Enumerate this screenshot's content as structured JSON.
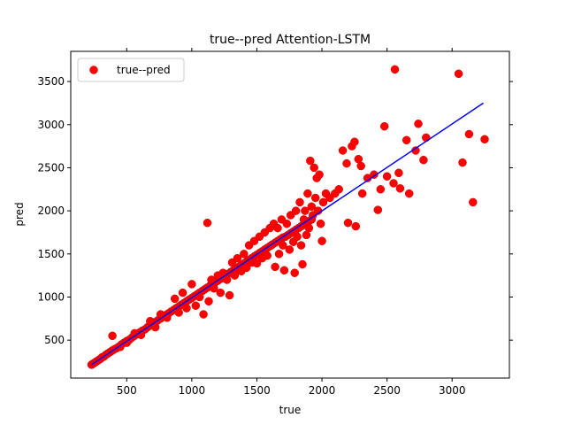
{
  "chart_data": {
    "type": "scatter",
    "title": "true--pred Attention-LSTM",
    "xlabel": "true",
    "ylabel": "pred",
    "xlim": [
      70,
      3440
    ],
    "ylim": [
      60,
      3850
    ],
    "xticks": [
      500,
      1000,
      1500,
      2000,
      2500,
      3000
    ],
    "yticks": [
      500,
      1000,
      1500,
      2000,
      2500,
      3000,
      3500
    ],
    "grid": false,
    "legend": {
      "position": "top-left",
      "entries": [
        "true--pred"
      ]
    },
    "colors": {
      "points": "#ff0000",
      "points_edge": "#cc0000",
      "fit_line": "#0000ff"
    },
    "series": [
      {
        "name": "true--pred",
        "points": [
          [
            230,
            215
          ],
          [
            240,
            225
          ],
          [
            250,
            235
          ],
          [
            260,
            245
          ],
          [
            270,
            255
          ],
          [
            285,
            270
          ],
          [
            300,
            285
          ],
          [
            310,
            300
          ],
          [
            325,
            310
          ],
          [
            340,
            330
          ],
          [
            355,
            345
          ],
          [
            370,
            360
          ],
          [
            385,
            375
          ],
          [
            400,
            390
          ],
          [
            420,
            405
          ],
          [
            440,
            425
          ],
          [
            460,
            450
          ],
          [
            480,
            470
          ],
          [
            500,
            490
          ],
          [
            520,
            505
          ],
          [
            540,
            530
          ],
          [
            560,
            550
          ],
          [
            580,
            570
          ],
          [
            600,
            590
          ],
          [
            620,
            610
          ],
          [
            640,
            625
          ],
          [
            660,
            650
          ],
          [
            680,
            670
          ],
          [
            700,
            690
          ],
          [
            720,
            710
          ],
          [
            740,
            730
          ],
          [
            760,
            750
          ],
          [
            780,
            770
          ],
          [
            800,
            790
          ],
          [
            820,
            810
          ],
          [
            840,
            830
          ],
          [
            860,
            850
          ],
          [
            880,
            870
          ],
          [
            900,
            890
          ],
          [
            920,
            910
          ],
          [
            940,
            930
          ],
          [
            960,
            950
          ],
          [
            980,
            970
          ],
          [
            1000,
            990
          ],
          [
            1020,
            1010
          ],
          [
            1040,
            1030
          ],
          [
            1060,
            1050
          ],
          [
            1080,
            1070
          ],
          [
            1100,
            1090
          ],
          [
            1120,
            1110
          ],
          [
            1140,
            1130
          ],
          [
            1160,
            1150
          ],
          [
            1180,
            1170
          ],
          [
            1200,
            1190
          ],
          [
            1220,
            1210
          ],
          [
            1240,
            1230
          ],
          [
            1260,
            1250
          ],
          [
            1280,
            1270
          ],
          [
            1300,
            1290
          ],
          [
            1320,
            1310
          ],
          [
            1340,
            1330
          ],
          [
            1360,
            1350
          ],
          [
            1380,
            1370
          ],
          [
            1400,
            1390
          ],
          [
            1420,
            1410
          ],
          [
            1440,
            1430
          ],
          [
            1460,
            1450
          ],
          [
            1480,
            1470
          ],
          [
            1500,
            1490
          ],
          [
            1520,
            1510
          ],
          [
            1540,
            1530
          ],
          [
            1560,
            1550
          ],
          [
            1580,
            1570
          ],
          [
            1600,
            1590
          ],
          [
            1620,
            1610
          ],
          [
            1640,
            1630
          ],
          [
            1660,
            1650
          ],
          [
            1680,
            1670
          ],
          [
            1700,
            1690
          ],
          [
            1720,
            1700
          ],
          [
            1740,
            1720
          ],
          [
            1760,
            1740
          ],
          [
            1780,
            1760
          ],
          [
            1800,
            1780
          ],
          [
            1820,
            1800
          ],
          [
            1840,
            1820
          ],
          [
            1860,
            1840
          ],
          [
            1880,
            1860
          ],
          [
            1900,
            1880
          ],
          [
            1920,
            1900
          ],
          [
            390,
            550
          ],
          [
            450,
            420
          ],
          [
            500,
            470
          ],
          [
            560,
            580
          ],
          [
            610,
            560
          ],
          [
            680,
            720
          ],
          [
            720,
            650
          ],
          [
            760,
            800
          ],
          [
            810,
            760
          ],
          [
            870,
            980
          ],
          [
            900,
            820
          ],
          [
            930,
            1050
          ],
          [
            960,
            870
          ],
          [
            1000,
            1150
          ],
          [
            1030,
            900
          ],
          [
            1060,
            1000
          ],
          [
            1090,
            800
          ],
          [
            1120,
            1860
          ],
          [
            1130,
            950
          ],
          [
            1150,
            1200
          ],
          [
            1170,
            1100
          ],
          [
            1200,
            1250
          ],
          [
            1220,
            1050
          ],
          [
            1240,
            1280
          ],
          [
            1270,
            1200
          ],
          [
            1290,
            1020
          ],
          [
            1310,
            1400
          ],
          [
            1330,
            1250
          ],
          [
            1350,
            1450
          ],
          [
            1380,
            1300
          ],
          [
            1400,
            1500
          ],
          [
            1420,
            1340
          ],
          [
            1440,
            1600
          ],
          [
            1460,
            1400
          ],
          [
            1480,
            1650
          ],
          [
            1500,
            1390
          ],
          [
            1520,
            1700
          ],
          [
            1540,
            1450
          ],
          [
            1560,
            1750
          ],
          [
            1580,
            1480
          ],
          [
            1600,
            1800
          ],
          [
            1610,
            1600
          ],
          [
            1630,
            1850
          ],
          [
            1640,
            1350
          ],
          [
            1660,
            1800
          ],
          [
            1670,
            1500
          ],
          [
            1690,
            1900
          ],
          [
            1700,
            1600
          ],
          [
            1710,
            1310
          ],
          [
            1730,
            1850
          ],
          [
            1750,
            1550
          ],
          [
            1760,
            1950
          ],
          [
            1780,
            1640
          ],
          [
            1790,
            1280
          ],
          [
            1800,
            2000
          ],
          [
            1810,
            1700
          ],
          [
            1830,
            2100
          ],
          [
            1840,
            1600
          ],
          [
            1850,
            1380
          ],
          [
            1860,
            1900
          ],
          [
            1870,
            2000
          ],
          [
            1880,
            1720
          ],
          [
            1890,
            2200
          ],
          [
            1900,
            1800
          ],
          [
            1910,
            2580
          ],
          [
            1920,
            2050
          ],
          [
            1930,
            1950
          ],
          [
            1940,
            2500
          ],
          [
            1950,
            2150
          ],
          [
            1960,
            2380
          ],
          [
            1970,
            2000
          ],
          [
            1980,
            2420
          ],
          [
            1990,
            1850
          ],
          [
            2000,
            1650
          ],
          [
            2010,
            2100
          ],
          [
            2030,
            2200
          ],
          [
            2060,
            2150
          ],
          [
            2100,
            2200
          ],
          [
            2130,
            2250
          ],
          [
            2160,
            2700
          ],
          [
            2190,
            2550
          ],
          [
            2200,
            1860
          ],
          [
            2230,
            2750
          ],
          [
            2250,
            2800
          ],
          [
            2260,
            1820
          ],
          [
            2280,
            2600
          ],
          [
            2300,
            2520
          ],
          [
            2310,
            2200
          ],
          [
            2350,
            2380
          ],
          [
            2400,
            2420
          ],
          [
            2430,
            2010
          ],
          [
            2450,
            2250
          ],
          [
            2480,
            2980
          ],
          [
            2500,
            2400
          ],
          [
            2550,
            2320
          ],
          [
            2560,
            3640
          ],
          [
            2590,
            2440
          ],
          [
            2600,
            2260
          ],
          [
            2650,
            2820
          ],
          [
            2670,
            2200
          ],
          [
            2720,
            2700
          ],
          [
            2740,
            3010
          ],
          [
            2780,
            2590
          ],
          [
            2800,
            2850
          ],
          [
            3050,
            3590
          ],
          [
            3080,
            2560
          ],
          [
            3130,
            2890
          ],
          [
            3160,
            2100
          ],
          [
            3250,
            2830
          ]
        ],
        "fit_line": [
          [
            230,
            215
          ],
          [
            3240,
            3250
          ]
        ]
      }
    ]
  }
}
